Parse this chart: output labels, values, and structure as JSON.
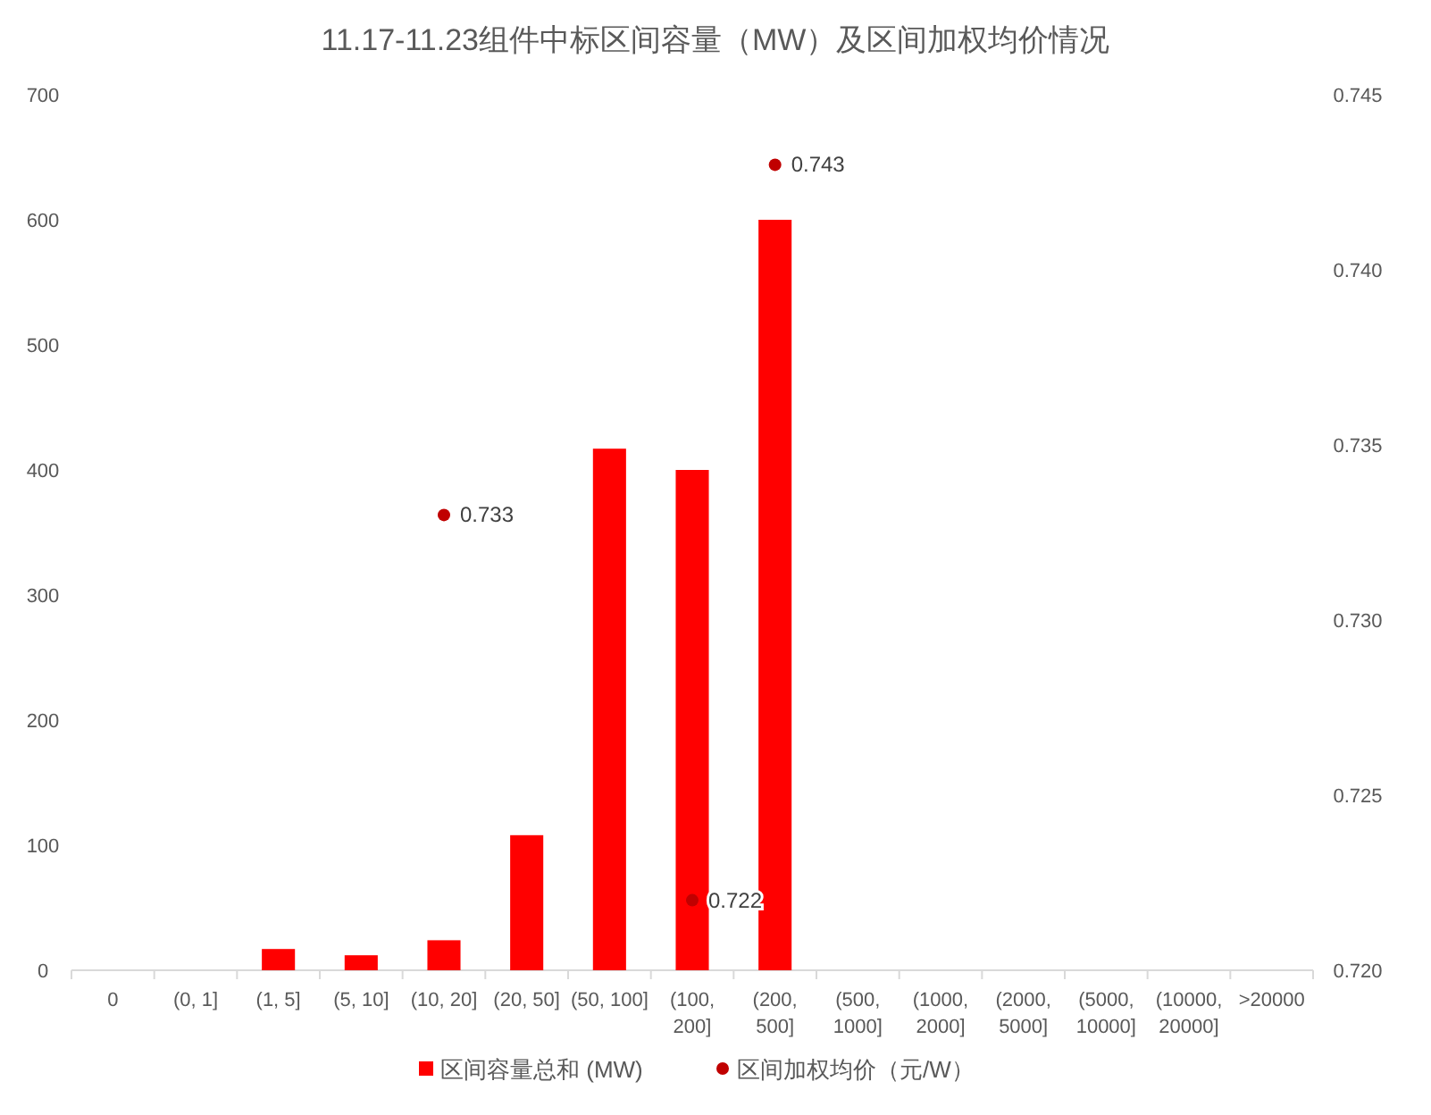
{
  "chart_data": {
    "type": "bar",
    "title": "11.17-11.23组件中标区间容量（MW）及区间加权均价情况",
    "categories": [
      "0",
      "(0, 1]",
      "(1, 5]",
      "(5, 10]",
      "(10, 20]",
      "(20, 50]",
      "(50, 100]",
      "(100, 200]",
      "(200, 500]",
      "(500, 1000]",
      "(1000, 2000]",
      "(2000, 5000]",
      "(5000, 10000]",
      "(10000, 20000]",
      ">20000"
    ],
    "series": [
      {
        "name": "区间容量总和 (MW)",
        "type": "bar",
        "color": "#ff0000",
        "values": [
          0,
          0,
          17,
          12,
          24,
          108,
          417,
          400,
          600,
          0,
          0,
          0,
          0,
          0,
          0
        ]
      },
      {
        "name": "区间加权均价（元/W）",
        "type": "scatter",
        "axis": "y2",
        "marker": "circle",
        "color": "#c00000",
        "values": [
          null,
          null,
          null,
          null,
          0.733,
          null,
          null,
          0.722,
          0.743,
          null,
          null,
          null,
          null,
          null,
          null
        ],
        "value_labels": [
          null,
          null,
          null,
          null,
          "0.733",
          null,
          null,
          "0.722",
          "0.743",
          null,
          null,
          null,
          null,
          null,
          null
        ]
      }
    ],
    "ylim": [
      0,
      700
    ],
    "yticks": [
      0,
      100,
      200,
      300,
      400,
      500,
      600,
      700
    ],
    "y2lim": [
      0.72,
      0.745
    ],
    "y2ticks": [
      {
        "value": 0.72,
        "label": "0.720"
      },
      {
        "value": 0.725,
        "label": "0.725"
      },
      {
        "value": 0.73,
        "label": "0.730"
      },
      {
        "value": 0.735,
        "label": "0.735"
      },
      {
        "value": 0.74,
        "label": "0.740"
      },
      {
        "value": 0.745,
        "label": "0.745"
      }
    ],
    "legend": "bottom",
    "grid": false
  }
}
